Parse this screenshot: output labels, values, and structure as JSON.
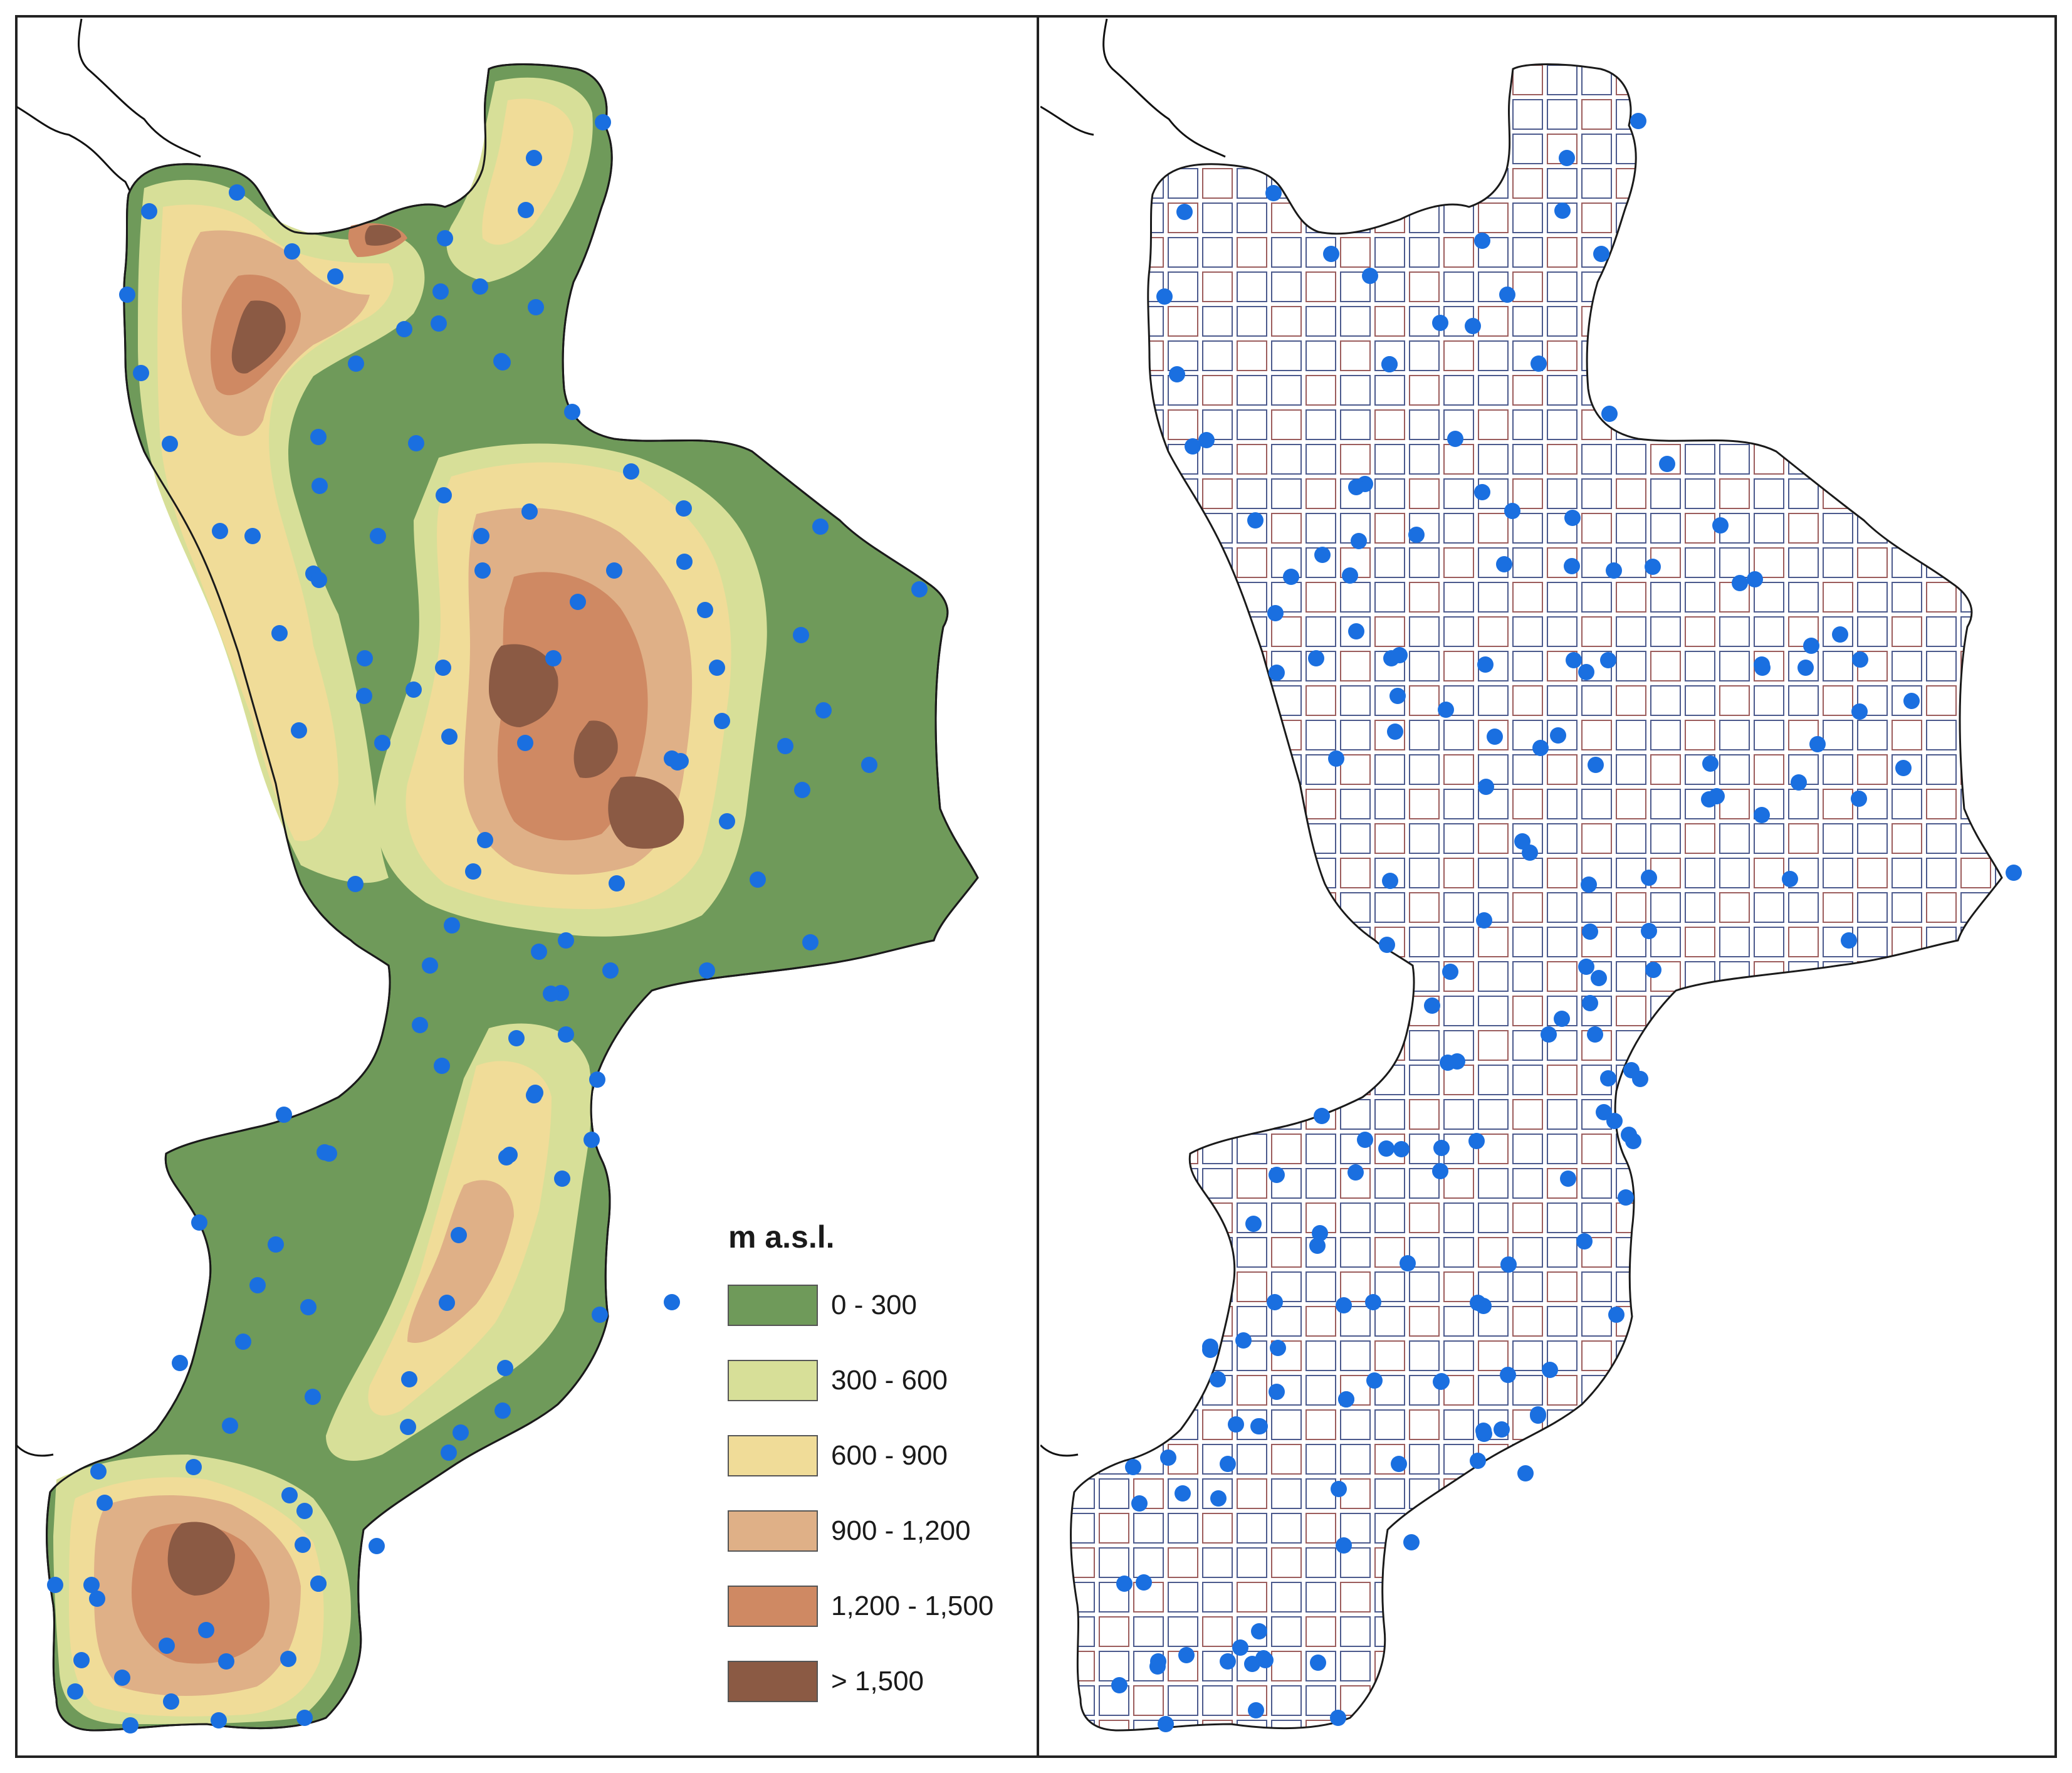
{
  "legend": {
    "title": "m a.s.l.",
    "classes": [
      {
        "label": "0 - 300",
        "color": "#6f9a5a"
      },
      {
        "label": "300 - 600",
        "color": "#d7df98"
      },
      {
        "label": "600 - 900",
        "color": "#f0dc98"
      },
      {
        "label": "900 - 1,200",
        "color": "#dfb087"
      },
      {
        "label": "1,200 - 1,500",
        "color": "#cf8963"
      },
      {
        "label": "> 1,500",
        "color": "#8b5a44"
      }
    ]
  },
  "colors": {
    "station": "#1a6fe0",
    "coast": "#111111",
    "grid_a": "#2b3c78",
    "grid_b": "#8a4040"
  },
  "icons": {
    "station_marker": "circle-dot-icon"
  }
}
